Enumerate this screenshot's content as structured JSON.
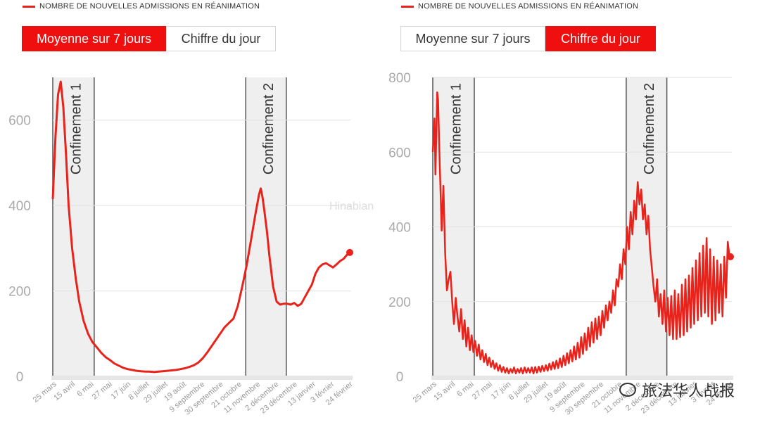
{
  "panels": [
    {
      "legend": "NOMBRE DE NOUVELLES ADMISSIONS EN RÉANIMATION",
      "toggle": [
        {
          "label": "Moyenne sur 7 jours",
          "active": true
        },
        {
          "label": "Chiffre du jour",
          "active": false
        }
      ]
    },
    {
      "legend": "NOMBRE DE NOUVELLES ADMISSIONS EN RÉANIMATION",
      "toggle": [
        {
          "label": "Moyenne sur 7 jours",
          "active": false
        },
        {
          "label": "Chiffre du jour",
          "active": true
        }
      ]
    }
  ],
  "watermark": {
    "center": "Hinabian",
    "corner": "旅法华人战报"
  },
  "chart_data": [
    {
      "type": "line",
      "title": "NOMBRE DE NOUVELLES ADMISSIONS EN RÉANIMATION",
      "mode": "Moyenne sur 7 jours",
      "categories": [
        "25 mars",
        "15 avril",
        "6 mai",
        "27 mai",
        "17 juin",
        "8 juillet",
        "29 juillet",
        "19 août",
        "9 septembre",
        "30 septembre",
        "21 octobre",
        "11 novembre",
        "2 décembre",
        "23 décembre",
        "13 janvier",
        "3 février",
        "24 février"
      ],
      "ylim": [
        0,
        700
      ],
      "yticks": [
        0,
        200,
        400,
        600
      ],
      "bands": [
        {
          "label": "Confinement 1",
          "start": "17 mars",
          "end": "11 mai"
        },
        {
          "label": "Confinement 2",
          "start": "30 octobre",
          "end": "15 décembre"
        }
      ],
      "series": [
        {
          "color": "#e8231b",
          "points": [
            [
              0,
              415
            ],
            [
              3,
              560
            ],
            [
              6,
              660
            ],
            [
              9,
              690
            ],
            [
              12,
              630
            ],
            [
              15,
              520
            ],
            [
              18,
              400
            ],
            [
              22,
              300
            ],
            [
              26,
              230
            ],
            [
              30,
              175
            ],
            [
              35,
              130
            ],
            [
              40,
              100
            ],
            [
              45,
              80
            ],
            [
              50,
              68
            ],
            [
              55,
              55
            ],
            [
              60,
              45
            ],
            [
              65,
              38
            ],
            [
              70,
              30
            ],
            [
              75,
              25
            ],
            [
              80,
              20
            ],
            [
              85,
              17
            ],
            [
              90,
              15
            ],
            [
              95,
              13
            ],
            [
              100,
              12
            ],
            [
              105,
              11
            ],
            [
              110,
              11
            ],
            [
              115,
              10
            ],
            [
              120,
              11
            ],
            [
              125,
              12
            ],
            [
              130,
              13
            ],
            [
              135,
              14
            ],
            [
              140,
              15
            ],
            [
              145,
              17
            ],
            [
              150,
              19
            ],
            [
              155,
              22
            ],
            [
              160,
              26
            ],
            [
              165,
              32
            ],
            [
              170,
              42
            ],
            [
              175,
              55
            ],
            [
              180,
              70
            ],
            [
              185,
              85
            ],
            [
              190,
              100
            ],
            [
              195,
              115
            ],
            [
              200,
              125
            ],
            [
              205,
              135
            ],
            [
              210,
              165
            ],
            [
              215,
              210
            ],
            [
              220,
              260
            ],
            [
              225,
              320
            ],
            [
              230,
              380
            ],
            [
              234,
              425
            ],
            [
              236,
              440
            ],
            [
              238,
              420
            ],
            [
              240,
              390
            ],
            [
              243,
              340
            ],
            [
              246,
              280
            ],
            [
              250,
              210
            ],
            [
              254,
              175
            ],
            [
              258,
              168
            ],
            [
              262,
              170
            ],
            [
              266,
              170
            ],
            [
              270,
              168
            ],
            [
              274,
              172
            ],
            [
              278,
              165
            ],
            [
              282,
              170
            ],
            [
              286,
              185
            ],
            [
              290,
              200
            ],
            [
              294,
              215
            ],
            [
              298,
              240
            ],
            [
              302,
              255
            ],
            [
              306,
              262
            ],
            [
              310,
              265
            ],
            [
              314,
              260
            ],
            [
              318,
              255
            ],
            [
              322,
              262
            ],
            [
              326,
              270
            ],
            [
              330,
              275
            ],
            [
              334,
              285
            ],
            [
              337,
              290
            ]
          ]
        }
      ]
    },
    {
      "type": "line",
      "title": "NOMBRE DE NOUVELLES ADMISSIONS EN RÉANIMATION",
      "mode": "Chiffre du jour",
      "categories": [
        "25 mars",
        "15 avril",
        "6 mai",
        "27 mai",
        "17 juin",
        "8 juillet",
        "29 juillet",
        "19 août",
        "9 septembre",
        "30 septembre",
        "21 octobre",
        "11 novembre",
        "2 décembre",
        "23 décembre",
        "13 janvier",
        "3 février",
        "24 février"
      ],
      "ylim": [
        0,
        800
      ],
      "yticks": [
        0,
        200,
        400,
        600,
        800
      ],
      "bands": [
        {
          "label": "Confinement 1",
          "start": "17 mars",
          "end": "11 mai"
        },
        {
          "label": "Confinement 2",
          "start": "30 octobre",
          "end": "15 décembre"
        }
      ],
      "series": [
        {
          "color": "#e8231b",
          "points": [
            [
              0,
              600
            ],
            [
              2,
              690
            ],
            [
              3,
              540
            ],
            [
              5,
              760
            ],
            [
              6,
              740
            ],
            [
              8,
              560
            ],
            [
              9,
              480
            ],
            [
              10,
              390
            ],
            [
              12,
              510
            ],
            [
              14,
              330
            ],
            [
              16,
              230
            ],
            [
              18,
              260
            ],
            [
              20,
              280
            ],
            [
              22,
              200
            ],
            [
              24,
              140
            ],
            [
              26,
              210
            ],
            [
              28,
              160
            ],
            [
              30,
              120
            ],
            [
              32,
              180
            ],
            [
              34,
              100
            ],
            [
              36,
              150
            ],
            [
              38,
              80
            ],
            [
              40,
              130
            ],
            [
              42,
              70
            ],
            [
              44,
              110
            ],
            [
              46,
              65
            ],
            [
              48,
              95
            ],
            [
              50,
              55
            ],
            [
              52,
              85
            ],
            [
              54,
              45
            ],
            [
              56,
              70
            ],
            [
              58,
              38
            ],
            [
              60,
              60
            ],
            [
              62,
              30
            ],
            [
              64,
              50
            ],
            [
              66,
              25
            ],
            [
              68,
              42
            ],
            [
              70,
              20
            ],
            [
              72,
              35
            ],
            [
              74,
              15
            ],
            [
              76,
              30
            ],
            [
              78,
              12
            ],
            [
              80,
              25
            ],
            [
              82,
              10
            ],
            [
              84,
              22
            ],
            [
              86,
              8
            ],
            [
              88,
              20
            ],
            [
              90,
              10
            ],
            [
              92,
              24
            ],
            [
              94,
              8
            ],
            [
              96,
              20
            ],
            [
              98,
              10
            ],
            [
              100,
              22
            ],
            [
              102,
              8
            ],
            [
              104,
              24
            ],
            [
              106,
              10
            ],
            [
              108,
              22
            ],
            [
              110,
              10
            ],
            [
              112,
              24
            ],
            [
              114,
              8
            ],
            [
              116,
              25
            ],
            [
              118,
              10
            ],
            [
              120,
              26
            ],
            [
              122,
              12
            ],
            [
              124,
              28
            ],
            [
              126,
              14
            ],
            [
              128,
              30
            ],
            [
              130,
              15
            ],
            [
              132,
              34
            ],
            [
              134,
              18
            ],
            [
              136,
              38
            ],
            [
              138,
              20
            ],
            [
              140,
              42
            ],
            [
              142,
              22
            ],
            [
              144,
              48
            ],
            [
              146,
              25
            ],
            [
              148,
              55
            ],
            [
              150,
              30
            ],
            [
              152,
              62
            ],
            [
              154,
              35
            ],
            [
              156,
              70
            ],
            [
              158,
              40
            ],
            [
              160,
              80
            ],
            [
              162,
              45
            ],
            [
              164,
              90
            ],
            [
              166,
              50
            ],
            [
              168,
              105
            ],
            [
              170,
              60
            ],
            [
              172,
              115
            ],
            [
              174,
              70
            ],
            [
              176,
              130
            ],
            [
              178,
              80
            ],
            [
              180,
              145
            ],
            [
              182,
              90
            ],
            [
              184,
              155
            ],
            [
              186,
              100
            ],
            [
              188,
              160
            ],
            [
              190,
              110
            ],
            [
              192,
              175
            ],
            [
              194,
              130
            ],
            [
              196,
              190
            ],
            [
              198,
              150
            ],
            [
              200,
              200
            ],
            [
              202,
              170
            ],
            [
              204,
              230
            ],
            [
              206,
              190
            ],
            [
              208,
              260
            ],
            [
              210,
              240
            ],
            [
              212,
              300
            ],
            [
              214,
              260
            ],
            [
              216,
              340
            ],
            [
              218,
              300
            ],
            [
              220,
              400
            ],
            [
              222,
              340
            ],
            [
              224,
              440
            ],
            [
              226,
              380
            ],
            [
              228,
              470
            ],
            [
              230,
              420
            ],
            [
              232,
              520
            ],
            [
              234,
              460
            ],
            [
              236,
              500
            ],
            [
              238,
              420
            ],
            [
              240,
              460
            ],
            [
              242,
              380
            ],
            [
              244,
              430
            ],
            [
              246,
              340
            ],
            [
              248,
              290
            ],
            [
              250,
              240
            ],
            [
              252,
              200
            ],
            [
              254,
              260
            ],
            [
              256,
              160
            ],
            [
              258,
              220
            ],
            [
              260,
              140
            ],
            [
              262,
              230
            ],
            [
              264,
              120
            ],
            [
              266,
              210
            ],
            [
              268,
              110
            ],
            [
              270,
              215
            ],
            [
              272,
              100
            ],
            [
              274,
              230
            ],
            [
              276,
              100
            ],
            [
              278,
              220
            ],
            [
              280,
              105
            ],
            [
              282,
              245
            ],
            [
              284,
              110
            ],
            [
              286,
              260
            ],
            [
              288,
              120
            ],
            [
              290,
              270
            ],
            [
              292,
              130
            ],
            [
              294,
              290
            ],
            [
              296,
              140
            ],
            [
              298,
              310
            ],
            [
              300,
              150
            ],
            [
              302,
              330
            ],
            [
              304,
              160
            ],
            [
              306,
              350
            ],
            [
              308,
              170
            ],
            [
              310,
              370
            ],
            [
              312,
              160
            ],
            [
              314,
              340
            ],
            [
              316,
              140
            ],
            [
              318,
              320
            ],
            [
              320,
              150
            ],
            [
              322,
              310
            ],
            [
              324,
              170
            ],
            [
              326,
              300
            ],
            [
              328,
              160
            ],
            [
              330,
              320
            ],
            [
              332,
              210
            ],
            [
              334,
              360
            ],
            [
              336,
              320
            ],
            [
              337,
              320
            ]
          ]
        }
      ]
    }
  ]
}
